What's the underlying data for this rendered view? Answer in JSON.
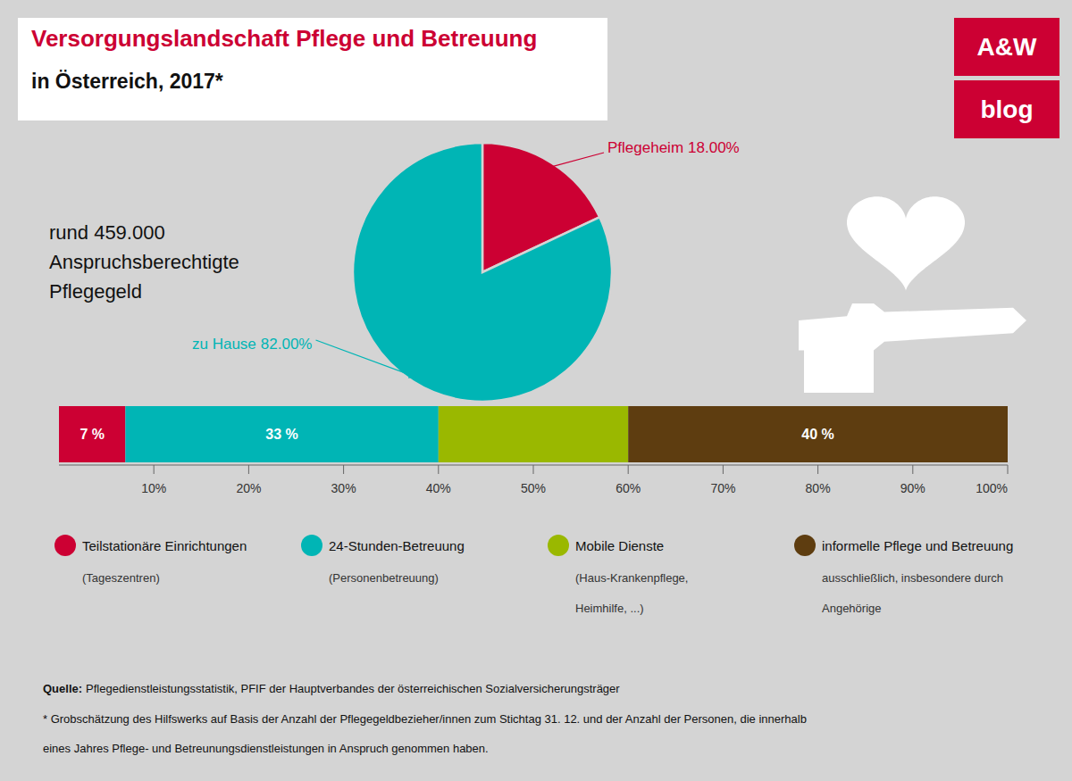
{
  "chart_data": [
    {
      "type": "pie",
      "title": "Versorgungslandschaft Pflege und Betreuung",
      "subtitle": "in Österreich, 2017*",
      "title_color": "#cc0033",
      "background": "#d4d4d4",
      "logo": [
        "A&W",
        "blog"
      ],
      "logo_color": "#cc0033",
      "annotations": [
        "rund 459.000",
        "Anspruchsberechtigte",
        "Pflegegeld"
      ],
      "categories": [
        "Pflegeheim",
        "zu Hause"
      ],
      "values": [
        18,
        82
      ],
      "value_labels": [
        "18.00%",
        "82.00%"
      ],
      "colors": [
        "#cc0033",
        "#00b5b5"
      ],
      "source_label": "Quelle:",
      "source": "Pflegedienstleistungsstatistik, PFIF der Hauptverbandes der österreichischen Sozialversicherungsträger",
      "footnotes": [
        "* Grobschätzung des Hilfswerks auf Basis der Anzahl der Pflegegeldbezieher/innen zum Stichtag 31. 12. und der Anzahl der Personen, die innerhalb",
        "eines Jahres Pflege- und Betreunungsdienstleistungen in Anspruch genommen haben."
      ]
    },
    {
      "type": "bar",
      "orientation": "horizontal",
      "stacked": true,
      "categories": [
        null
      ],
      "series": [
        {
          "name": "Teilstationäre Einrichtungen",
          "description": [
            "(Tageszentren)"
          ],
          "color": "#cc0033",
          "values": [
            7
          ],
          "value_labels": [
            "7 %"
          ]
        },
        {
          "name": "24-Stunden-Betreuung",
          "description": [
            "(Personenbetreuung)"
          ],
          "color": "#00b5b5",
          "values": [
            33
          ],
          "value_labels": [
            "33 %"
          ]
        },
        {
          "name": "Mobile Dienste",
          "description": [
            "(Haus-Krankenpflege,",
            "Heimhilfe, ...)"
          ],
          "color": "#9ab800",
          "values": [
            20
          ]
        },
        {
          "name": "informelle Pflege und Betreuung",
          "description": [
            "ausschließlich, insbesondere durch",
            "Angehörige"
          ],
          "color": "#5e3d10",
          "values": [
            40
          ],
          "value_labels": [
            "40 %"
          ]
        }
      ],
      "xlim": [
        0,
        100
      ],
      "xticks": [
        {
          "value": 10,
          "label": "10%"
        },
        {
          "value": 20,
          "label": "20%"
        },
        {
          "value": 30,
          "label": "30%"
        },
        {
          "value": 40,
          "label": "40%"
        },
        {
          "value": 50,
          "label": "50%"
        },
        {
          "value": 60,
          "label": "60%"
        },
        {
          "value": 70,
          "label": "70%"
        },
        {
          "value": 80,
          "label": "80%"
        },
        {
          "value": 90,
          "label": "90%"
        },
        {
          "value": 100,
          "label": "100%"
        }
      ],
      "legend": "bottom"
    }
  ]
}
